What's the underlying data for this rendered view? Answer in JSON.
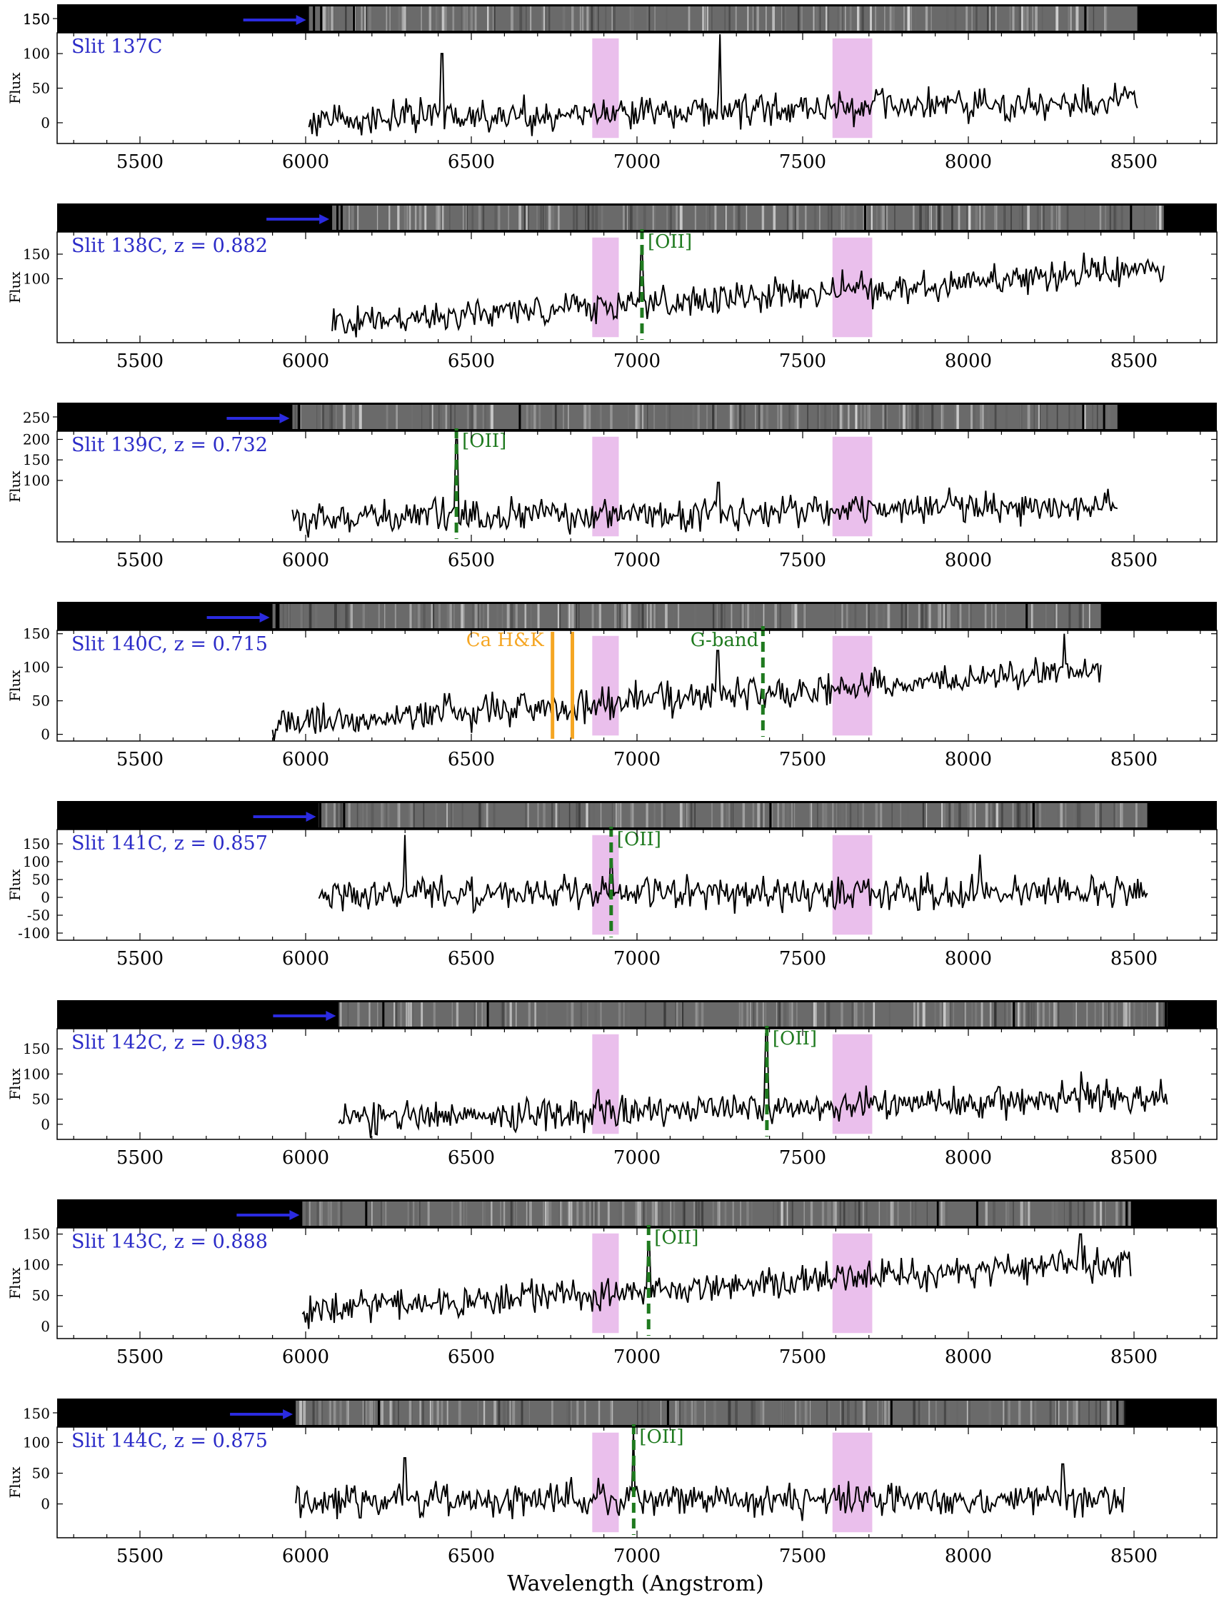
{
  "figure": {
    "xlabel": "Wavelength (Angstrom)",
    "ylabel": "Flux",
    "colors": {
      "spectrum": "#000000",
      "telluric": "#e8b8ea",
      "oii": "#1f7a1f",
      "cahk": "#f5a623",
      "label": "#2b2bc8",
      "arrow": "#2b2be0"
    }
  },
  "chart_data": [
    {
      "type": "line",
      "title": "Slit 137C",
      "xlabel": "",
      "ylabel": "Flux",
      "xlim": [
        5250,
        8750
      ],
      "ylim": [
        -30,
        130
      ],
      "yticks": [
        0,
        50,
        100,
        150
      ],
      "xticks": [
        5500,
        6000,
        6500,
        7000,
        7500,
        8000,
        8500
      ],
      "stripTicks": [
        150
      ],
      "spectrum_range": [
        6010,
        8510
      ],
      "baseline_start": 5,
      "baseline_end": 30,
      "telluric_bands": [
        [
          6865,
          6945
        ],
        [
          7590,
          7710
        ]
      ],
      "lines": [],
      "peaks": [
        [
          6410,
          100
        ],
        [
          7250,
          128
        ]
      ]
    },
    {
      "type": "line",
      "title": "Slit 138C, z = 0.882",
      "xlabel": "",
      "ylabel": "Flux",
      "xlim": [
        5250,
        8750
      ],
      "ylim": [
        -30,
        195
      ],
      "yticks": [
        100,
        150
      ],
      "xticks": [
        5500,
        6000,
        6500,
        7000,
        7500,
        8000,
        8500
      ],
      "stripTicks": [],
      "spectrum_range": [
        6080,
        8590
      ],
      "baseline_start": 8,
      "baseline_end": 120,
      "telluric_bands": [
        [
          6865,
          6945
        ],
        [
          7590,
          7710
        ]
      ],
      "lines": [
        {
          "label": "[OII]",
          "x": 7015,
          "kind": "oii",
          "peak": 150
        }
      ],
      "peaks": []
    },
    {
      "type": "line",
      "title": "Slit 139C, z = 0.732",
      "xlabel": "",
      "ylabel": "Flux",
      "xlim": [
        5250,
        8750
      ],
      "ylim": [
        -50,
        220
      ],
      "yticks": [
        100,
        150,
        200
      ],
      "xticks": [
        5500,
        6000,
        6500,
        7000,
        7500,
        8000,
        8500
      ],
      "stripTicks": [
        250
      ],
      "spectrum_range": [
        5960,
        8450
      ],
      "baseline_start": 5,
      "baseline_end": 40,
      "telluric_bands": [
        [
          6865,
          6945
        ],
        [
          7590,
          7710
        ]
      ],
      "lines": [
        {
          "label": "[OII]",
          "x": 6455,
          "kind": "oii",
          "peak": 200
        }
      ],
      "peaks": [
        [
          7245,
          95
        ]
      ]
    },
    {
      "type": "line",
      "title": "Slit 140C, z = 0.715",
      "xlabel": "",
      "ylabel": "Flux",
      "xlim": [
        5250,
        8750
      ],
      "ylim": [
        -10,
        155
      ],
      "yticks": [
        0,
        50,
        100,
        150
      ],
      "xticks": [
        5500,
        6000,
        6500,
        7000,
        7500,
        8000,
        8500
      ],
      "stripTicks": [],
      "spectrum_range": [
        5900,
        8400
      ],
      "baseline_start": 15,
      "baseline_end": 95,
      "telluric_bands": [
        [
          6865,
          6945
        ],
        [
          7590,
          7710
        ]
      ],
      "lines": [
        {
          "label": "Ca H&K",
          "x": 6745,
          "kind": "cahk"
        },
        {
          "label": "",
          "x": 6805,
          "kind": "cahk"
        },
        {
          "label": "G-band",
          "x": 7380,
          "kind": "gband"
        }
      ],
      "peaks": [
        [
          8290,
          150
        ],
        [
          7245,
          125
        ]
      ]
    },
    {
      "type": "line",
      "title": "Slit 141C, z = 0.857",
      "xlabel": "",
      "ylabel": "Flux",
      "xlim": [
        5250,
        8750
      ],
      "ylim": [
        -120,
        190
      ],
      "yticks": [
        -100,
        -50,
        0,
        50,
        100,
        150
      ],
      "xticks": [
        5500,
        6000,
        6500,
        7000,
        7500,
        8000,
        8500
      ],
      "stripTicks": [],
      "spectrum_range": [
        6040,
        8540
      ],
      "baseline_start": 10,
      "baseline_end": 15,
      "telluric_bands": [
        [
          6865,
          6945
        ],
        [
          7590,
          7710
        ]
      ],
      "lines": [
        {
          "label": "[OII]",
          "x": 6922,
          "kind": "oii",
          "peak": 100
        }
      ],
      "peaks": [
        [
          6300,
          175
        ],
        [
          8035,
          120
        ]
      ]
    },
    {
      "type": "line",
      "title": "Slit 142C, z = 0.983",
      "xlabel": "",
      "ylabel": "Flux",
      "xlim": [
        5250,
        8750
      ],
      "ylim": [
        -30,
        190
      ],
      "yticks": [
        0,
        50,
        100,
        150
      ],
      "xticks": [
        5500,
        6000,
        6500,
        7000,
        7500,
        8000,
        8500
      ],
      "stripTicks": [],
      "spectrum_range": [
        6100,
        8600
      ],
      "baseline_start": 10,
      "baseline_end": 55,
      "telluric_bands": [
        [
          6865,
          6945
        ],
        [
          7590,
          7710
        ]
      ],
      "lines": [
        {
          "label": "[OII]",
          "x": 7392,
          "kind": "oii",
          "peak": 180
        }
      ],
      "peaks": [
        [
          8340,
          105
        ]
      ]
    },
    {
      "type": "line",
      "title": "Slit 143C, z = 0.888",
      "xlabel": "",
      "ylabel": "Flux",
      "xlim": [
        5250,
        8750
      ],
      "ylim": [
        -20,
        160
      ],
      "yticks": [
        0,
        50,
        100,
        150
      ],
      "xticks": [
        5500,
        6000,
        6500,
        7000,
        7500,
        8000,
        8500
      ],
      "stripTicks": [],
      "spectrum_range": [
        5990,
        8490
      ],
      "baseline_start": 25,
      "baseline_end": 105,
      "telluric_bands": [
        [
          6865,
          6945
        ],
        [
          7590,
          7710
        ]
      ],
      "lines": [
        {
          "label": "[OII]",
          "x": 7035,
          "kind": "oii",
          "peak": 130
        }
      ],
      "peaks": [
        [
          8340,
          150
        ]
      ]
    },
    {
      "type": "line",
      "title": "Slit 144C, z = 0.875",
      "xlabel": "Wavelength (Angstrom)",
      "ylabel": "Flux",
      "xlim": [
        5250,
        8750
      ],
      "ylim": [
        -55,
        125
      ],
      "yticks": [
        0,
        50,
        100
      ],
      "xticks": [
        5500,
        6000,
        6500,
        7000,
        7500,
        8000,
        8500
      ],
      "stripTicks": [
        150
      ],
      "spectrum_range": [
        5970,
        8470
      ],
      "baseline_start": 5,
      "baseline_end": 10,
      "telluric_bands": [
        [
          6865,
          6945
        ],
        [
          7590,
          7710
        ]
      ],
      "lines": [
        {
          "label": "[OII]",
          "x": 6990,
          "kind": "oii",
          "peak": 120
        }
      ],
      "peaks": [
        [
          6300,
          75
        ],
        [
          8285,
          65
        ]
      ]
    }
  ]
}
